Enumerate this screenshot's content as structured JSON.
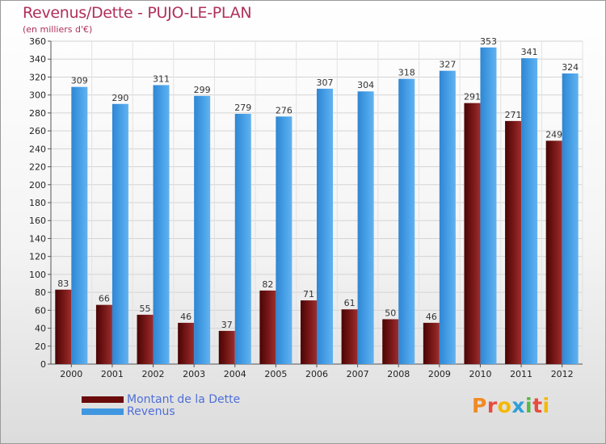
{
  "title": "Revenus/Dette - PUJO-LE-PLAN",
  "subtitle": "(en milliers d'€)",
  "legend": [
    {
      "label": "Montant de la Dette",
      "color": "#6b0a0a"
    },
    {
      "label": "Revenus",
      "color": "#3f97e0"
    }
  ],
  "logo": {
    "text": "Proxiti",
    "colors": [
      "#f08a24",
      "#e84c3d",
      "#f5b800",
      "#2ea0d8",
      "#55b948",
      "#e84c3d",
      "#f5b800"
    ]
  },
  "chart_data": {
    "type": "bar",
    "title": "Revenus/Dette - PUJO-LE-PLAN",
    "ylabel": "(en milliers d'€)",
    "categories": [
      "2000",
      "2001",
      "2002",
      "2003",
      "2004",
      "2005",
      "2006",
      "2007",
      "2008",
      "2009",
      "2010",
      "2011",
      "2012"
    ],
    "ylim": [
      0,
      360
    ],
    "yticks": [
      0,
      20,
      40,
      60,
      80,
      100,
      120,
      140,
      160,
      180,
      200,
      220,
      240,
      260,
      280,
      300,
      320,
      340,
      360
    ],
    "grid": true,
    "legend_position": "bottom-left",
    "series": [
      {
        "name": "Montant de la Dette",
        "color": "#6b0a0a",
        "values": [
          83,
          66,
          55,
          46,
          37,
          82,
          71,
          61,
          50,
          46,
          291,
          271,
          249
        ]
      },
      {
        "name": "Revenus",
        "color": "#3f97e0",
        "values": [
          309,
          290,
          311,
          299,
          279,
          276,
          307,
          304,
          318,
          327,
          353,
          341,
          324
        ]
      }
    ]
  }
}
